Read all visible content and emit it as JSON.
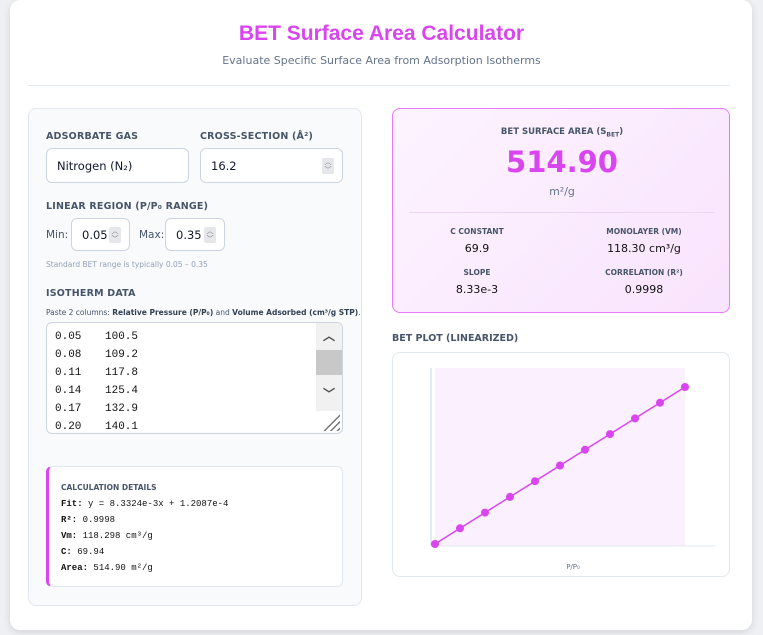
{
  "header": {
    "title": "BET Surface Area Calculator",
    "subtitle": "Evaluate Specific Surface Area from Adsorption Isotherms"
  },
  "inputs": {
    "gas_label": "ADSORBATE GAS",
    "gas_value": "Nitrogen (N₂)",
    "cross_label": "CROSS-SECTION (Å²)",
    "cross_value": "16.2",
    "range_label": "LINEAR REGION (P/P₀ RANGE)",
    "min_label": "Min:",
    "min_value": "0.05",
    "max_label": "Max:",
    "max_value": "0.35",
    "range_hint": "Standard BET range is typically 0.05 – 0.35",
    "data_label": "ISOTHERM DATA",
    "data_note_prefix": "Paste 2 columns: ",
    "data_note_b1": "Relative Pressure (P/P₀)",
    "data_note_mid": " and ",
    "data_note_b2": "Volume Adsorbed (cm³/g STP)",
    "data_note_end": ".",
    "rows": [
      [
        "0.05",
        "100.5"
      ],
      [
        "0.08",
        "109.2"
      ],
      [
        "0.11",
        "117.8"
      ],
      [
        "0.14",
        "125.4"
      ],
      [
        "0.17",
        "132.9"
      ],
      [
        "0.20",
        "140.1"
      ]
    ]
  },
  "calc": {
    "title": "CALCULATION DETAILS",
    "lines": [
      {
        "k": "Fit:",
        "v": " y = 8.3324e-3x + 1.2087e-4"
      },
      {
        "k": "R²:",
        "v": " 0.9998"
      },
      {
        "k": "Vm:",
        "v": " 118.298 cm³/g"
      },
      {
        "k": "C:",
        "v": " 69.94"
      },
      {
        "k": "Area:",
        "v": " 514.90 m²/g"
      }
    ]
  },
  "result": {
    "label": "BET SURFACE AREA (S",
    "label_sub": "BET",
    "label_end": ")",
    "value": "514.90",
    "unit": "m²/g",
    "stats": [
      {
        "label": "C CONSTANT",
        "value": "69.9"
      },
      {
        "label": "MONOLAYER (VM)",
        "value": "118.30 cm³/g"
      },
      {
        "label": "SLOPE",
        "value": "8.33e-3"
      },
      {
        "label": "CORRELATION (R²)",
        "value": "0.9998"
      }
    ]
  },
  "plot_title": "BET PLOT (LINEARIZED)",
  "chart_data": {
    "type": "line",
    "xlabel": "P/P₀",
    "ylabel": "",
    "color": "#d946ef",
    "x": [
      0.05,
      0.08,
      0.11,
      0.14,
      0.17,
      0.2,
      0.23,
      0.26,
      0.29,
      0.32,
      0.35
    ],
    "y": [
      0.000537,
      0.000787,
      0.001037,
      0.001287,
      0.001537,
      0.001787,
      0.002037,
      0.002287,
      0.002537,
      0.002787,
      0.003037
    ],
    "highlight_range": [
      0.05,
      0.35
    ]
  },
  "colors": {
    "accent": "#d946ef"
  }
}
